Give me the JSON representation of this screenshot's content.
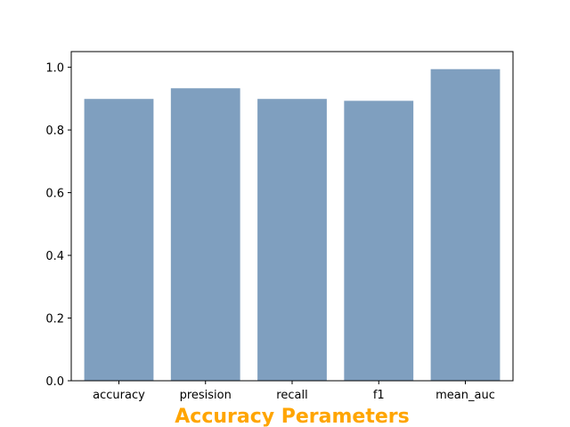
{
  "chart_data": {
    "type": "bar",
    "title": "",
    "xlabel": "Accuracy Perameters",
    "ylabel": "",
    "categories": [
      "accuracy",
      "presision",
      "recall",
      "f1",
      "mean_auc"
    ],
    "values": [
      0.899,
      0.933,
      0.899,
      0.893,
      0.994
    ],
    "ylim": [
      0,
      1.05
    ],
    "yticks": [
      "0.0",
      "0.2",
      "0.4",
      "0.6",
      "0.8",
      "1.0"
    ],
    "grid": false,
    "colors": {
      "bar": "#7f9fbf",
      "xlabel": "#ffa500",
      "axis": "#000000"
    }
  }
}
